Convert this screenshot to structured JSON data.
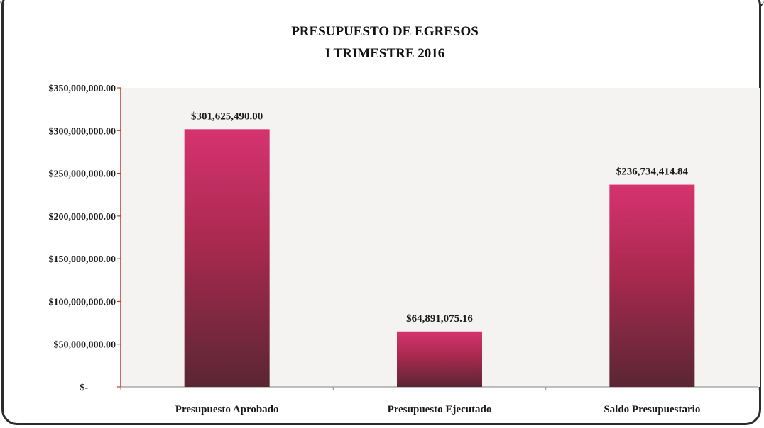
{
  "chart_data": {
    "type": "bar",
    "title": "PRESUPUESTO DE EGRESOS",
    "subtitle": "I TRIMESTRE 2016",
    "categories": [
      "Presupuesto Aprobado",
      "Presupuesto Ejecutado",
      "Saldo Presupuestario"
    ],
    "values": [
      301625490.0,
      64891075.16,
      236734414.84
    ],
    "value_labels": [
      "$301,625,490.00",
      "$64,891,075.16",
      "$236,734,414.84"
    ],
    "ylim": [
      0,
      350000000
    ],
    "y_ticks": [
      0,
      50000000,
      100000000,
      150000000,
      200000000,
      250000000,
      300000000,
      350000000
    ],
    "y_tick_labels": [
      "$-",
      "$50,000,000.00",
      "$100,000,000.00",
      "$150,000,000.00",
      "$200,000,000.00",
      "$250,000,000.00",
      "$300,000,000.00",
      "$350,000,000.00"
    ],
    "xlabel": "",
    "ylabel": "",
    "grid": false,
    "legend": "none",
    "colors": {
      "bar_top": "#d6336f",
      "bar_bottom": "#5a2634",
      "axis": "#c0392b"
    }
  }
}
